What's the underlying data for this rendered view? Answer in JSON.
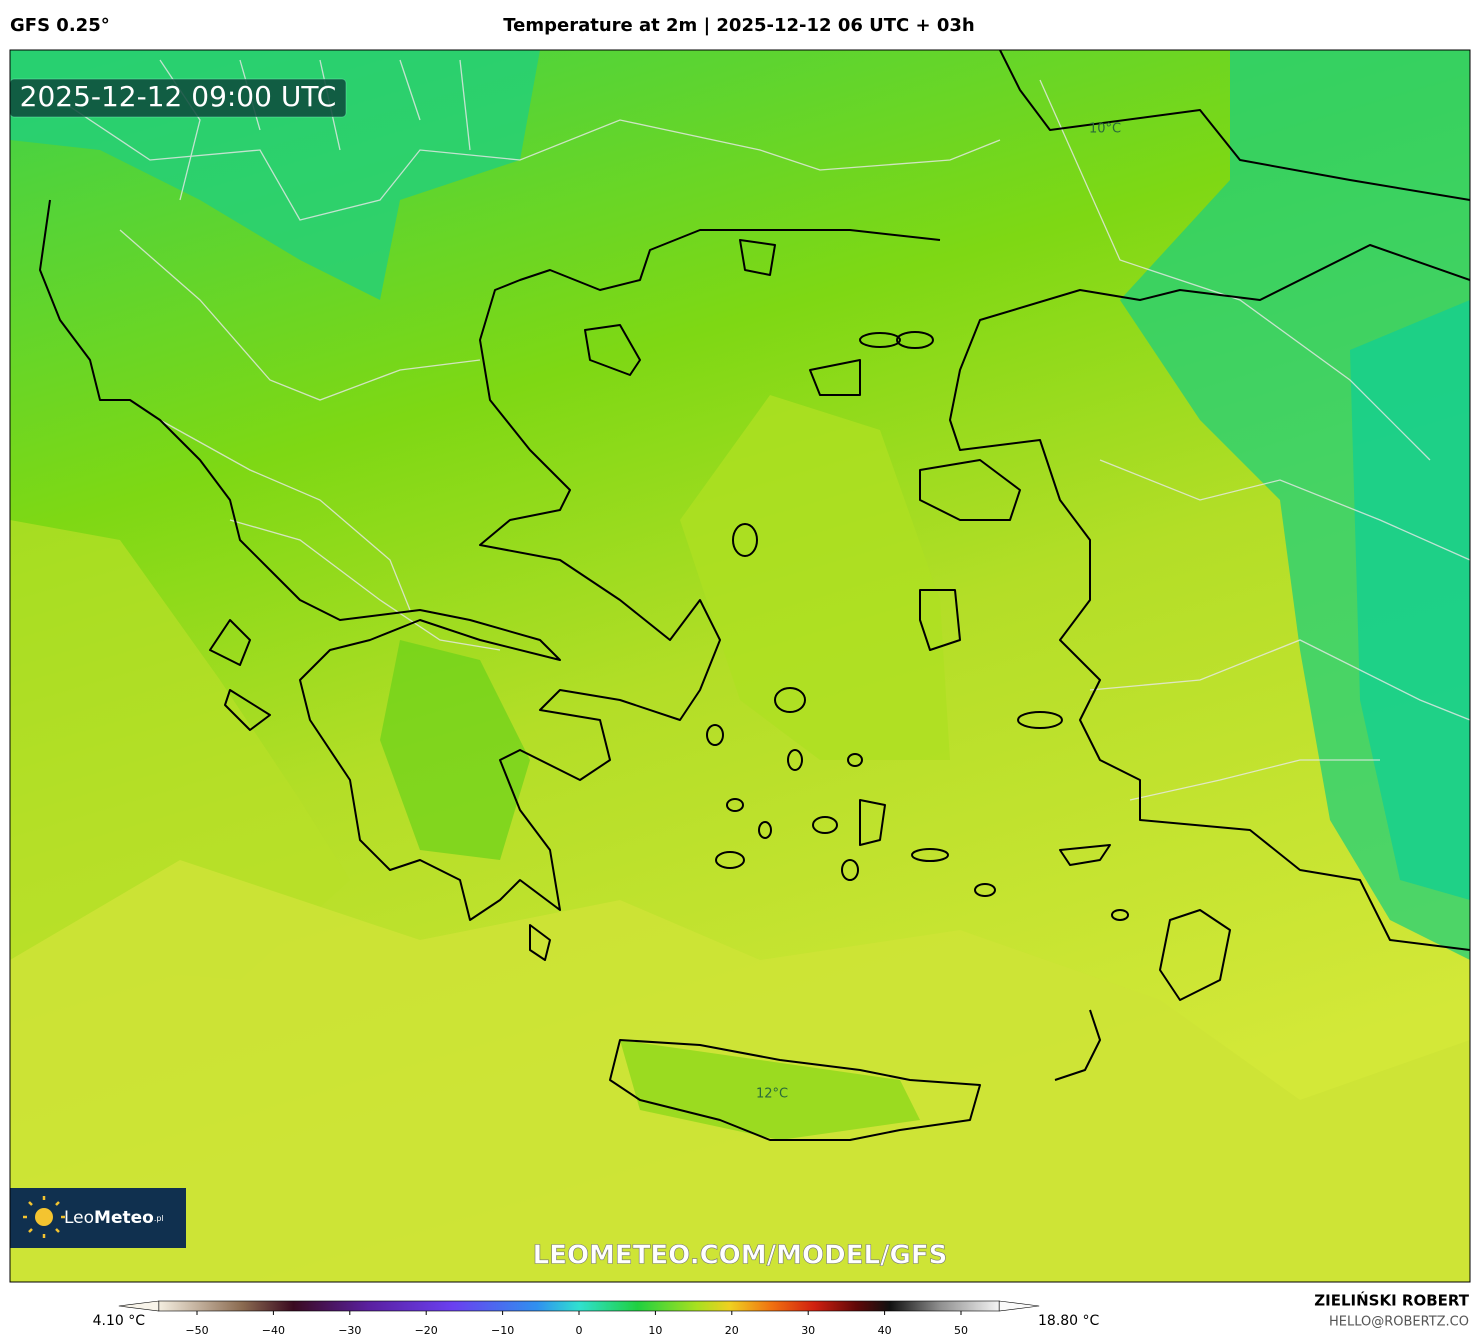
{
  "header": {
    "model": "GFS 0.25°",
    "title": "Temperature at 2m | 2025-12-12 06 UTC + 03h"
  },
  "map": {
    "timestamp": "2025-12-12 09:00 UTC",
    "contour_labels": [
      "10°C",
      "12°C"
    ],
    "logo": {
      "prefix": "Leo",
      "name": "Meteo",
      "suffix": ".pl"
    },
    "watermark": "LEOMETEO.COM/MODEL/GFS"
  },
  "colorbar": {
    "min_label": "4.10 °C",
    "max_label": "18.80 °C",
    "lim": [
      -55,
      55
    ],
    "ticks": [
      {
        "value": -50,
        "label": "−50"
      },
      {
        "value": -40,
        "label": "−40"
      },
      {
        "value": -30,
        "label": "−30"
      },
      {
        "value": -20,
        "label": "−20"
      },
      {
        "value": -10,
        "label": "−10"
      },
      0,
      10,
      20,
      30,
      40,
      50
    ]
  },
  "credit": {
    "name": "ZIELIŃSKI ROBERT",
    "email": "HELLO@ROBERTZ.CO"
  }
}
